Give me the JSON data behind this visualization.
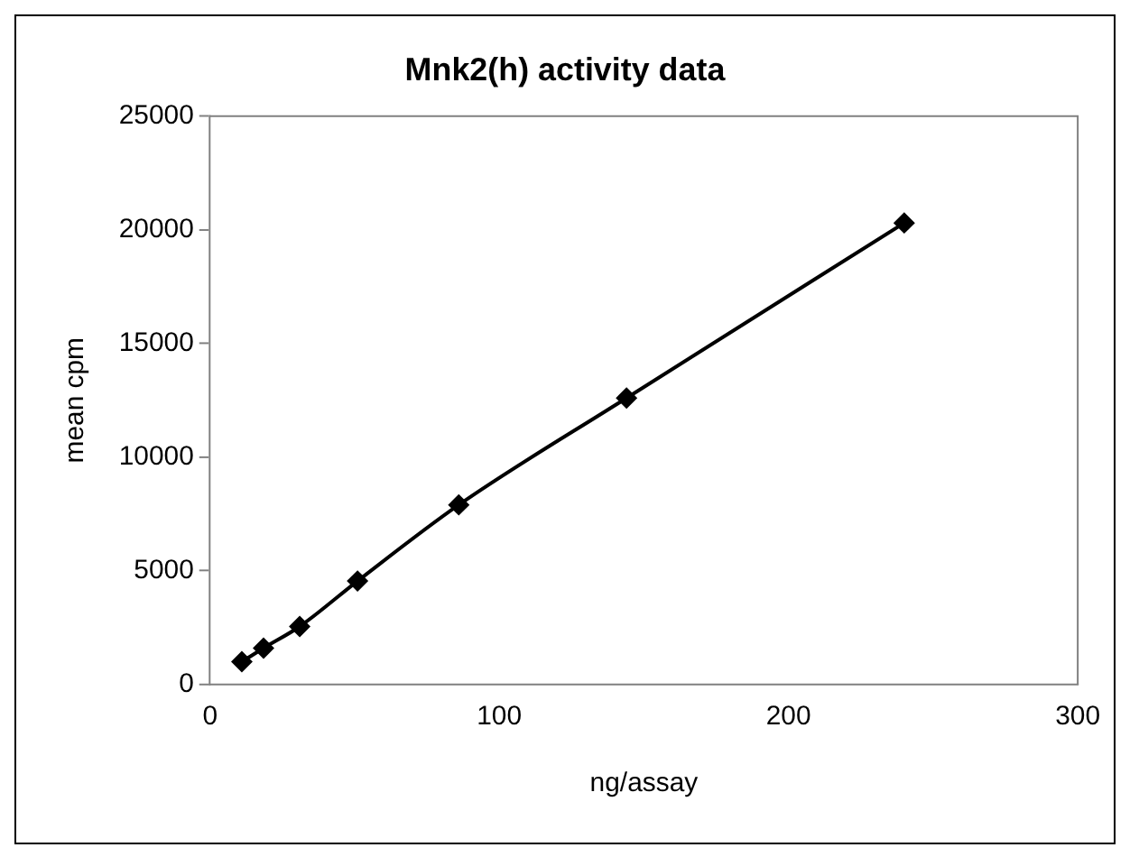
{
  "chart_data": {
    "type": "line",
    "title": "Mnk2(h) activity data",
    "xlabel": "ng/assay",
    "ylabel": "mean cpm",
    "x": [
      11,
      18.5,
      31,
      51,
      86,
      144,
      240
    ],
    "series": [
      {
        "color": "#000000",
        "values": [
          1000,
          1600,
          2550,
          4550,
          7900,
          12600,
          20300
        ]
      }
    ],
    "xlim": [
      0,
      300
    ],
    "xticks": [
      0,
      100,
      200,
      300
    ],
    "ylim": [
      0,
      25000
    ],
    "yticks": [
      0,
      5000,
      10000,
      15000,
      20000,
      25000
    ],
    "grid": false,
    "legend": false,
    "marker": "diamond",
    "line_style": "solid"
  }
}
